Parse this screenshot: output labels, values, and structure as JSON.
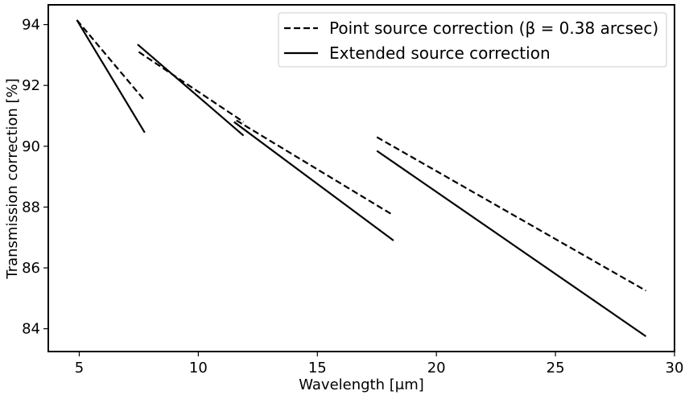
{
  "chart_data": {
    "type": "line",
    "xlabel": "Wavelength [μm]",
    "ylabel": "Transmission correction [%]",
    "xlim": [
      3.7,
      30.0
    ],
    "ylim": [
      83.25,
      94.65
    ],
    "xticks": [
      5,
      10,
      15,
      20,
      25,
      30
    ],
    "yticks": [
      84,
      86,
      88,
      90,
      92,
      94
    ],
    "grid": false,
    "legend_position": "top-right",
    "series": [
      {
        "name": "Point source correction (β = 0.38 arcsec)",
        "style": "dashed",
        "color": "#000000",
        "segments": [
          [
            [
              4.9,
              94.15
            ],
            [
              7.75,
              91.5
            ]
          ],
          [
            [
              7.5,
              93.1
            ],
            [
              11.9,
              90.8
            ]
          ],
          [
            [
              11.6,
              90.85
            ],
            [
              18.15,
              87.75
            ]
          ],
          [
            [
              17.5,
              90.3
            ],
            [
              28.8,
              85.25
            ]
          ]
        ]
      },
      {
        "name": "Extended source correction",
        "style": "solid",
        "color": "#000000",
        "segments": [
          [
            [
              4.9,
              94.15
            ],
            [
              7.75,
              90.45
            ]
          ],
          [
            [
              7.45,
              93.35
            ],
            [
              11.9,
              90.35
            ]
          ],
          [
            [
              11.5,
              90.8
            ],
            [
              18.2,
              86.9
            ]
          ],
          [
            [
              17.5,
              89.85
            ],
            [
              28.8,
              83.75
            ]
          ]
        ]
      }
    ]
  }
}
